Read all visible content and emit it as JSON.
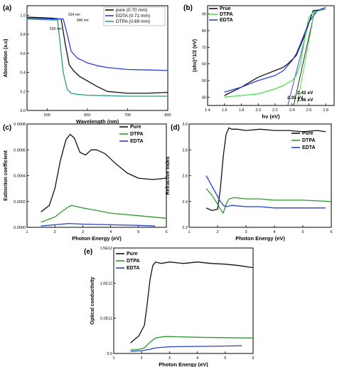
{
  "chart_data": [
    {
      "panel": "(a)",
      "type": "line",
      "xlabel": "Wavelength (nm)",
      "ylabel": "Absorption (a.u)",
      "xlim": [
        450,
        800
      ],
      "ylim": [
        0,
        1.1
      ],
      "xticks": [
        "500",
        "600",
        "700",
        "800"
      ],
      "yticks": [
        "0.0",
        "0.2",
        "0.4",
        "0.6",
        "0.8",
        "1.0"
      ],
      "annotations": [
        "524 nm",
        "540 nm",
        "526 nm"
      ],
      "series": [
        {
          "name": "pure (0.70 mm)",
          "color": "#111111",
          "x": [
            450,
            480,
            510,
            535,
            545,
            555,
            565,
            580,
            600,
            625,
            650,
            700,
            750,
            800
          ],
          "y": [
            0.98,
            0.975,
            0.97,
            0.96,
            0.7,
            0.48,
            0.42,
            0.36,
            0.31,
            0.25,
            0.2,
            0.18,
            0.18,
            0.19
          ]
        },
        {
          "name": "EDTA (0.71 mm)",
          "color": "#2a3fd6",
          "x": [
            450,
            480,
            510,
            540,
            550,
            560,
            575,
            600,
            625,
            650,
            700,
            750,
            800
          ],
          "y": [
            0.97,
            0.965,
            0.96,
            0.96,
            0.8,
            0.62,
            0.55,
            0.5,
            0.47,
            0.45,
            0.43,
            0.425,
            0.42
          ]
        },
        {
          "name": "DTPA (0.69 mm)",
          "color": "#2a9a8e",
          "x": [
            450,
            480,
            510,
            526,
            540,
            550,
            560,
            575,
            600,
            650,
            700,
            750,
            800
          ],
          "y": [
            0.96,
            0.955,
            0.95,
            0.95,
            0.4,
            0.22,
            0.18,
            0.17,
            0.16,
            0.155,
            0.15,
            0.15,
            0.15
          ]
        }
      ],
      "legend_position": "top-right"
    },
    {
      "panel": "(b)",
      "type": "line",
      "xlabel": "hν (eV)",
      "ylabel": "(αhν)^1/2 (eV)",
      "xlim": [
        1.4,
        2.9
      ],
      "ylim": [
        35,
        95
      ],
      "xticks": [
        "1.4",
        "1.6",
        "1.8",
        "2.0",
        "2.2",
        "2.4",
        "2.6",
        "2.8"
      ],
      "yticks": [
        "40",
        "50",
        "60",
        "70",
        "80",
        "90"
      ],
      "annotations": [
        "2.35 eV",
        "2.42 eV",
        "2.46 eV"
      ],
      "series": [
        {
          "name": "Prue",
          "color": "#111111",
          "x": [
            1.6,
            1.8,
            2.0,
            2.1,
            2.2,
            2.3,
            2.35,
            2.45,
            2.55,
            2.65,
            2.8
          ],
          "y": [
            41,
            46,
            52,
            54,
            56,
            58,
            60,
            65,
            77,
            92,
            93
          ]
        },
        {
          "name": "DTPA",
          "color": "#44e34a",
          "x": [
            1.6,
            1.8,
            2.0,
            2.2,
            2.3,
            2.4,
            2.45,
            2.5,
            2.55,
            2.6,
            2.65,
            2.8
          ],
          "y": [
            40,
            41,
            42,
            45,
            47,
            50,
            53,
            60,
            75,
            88,
            91,
            93
          ]
        },
        {
          "name": "EDTA",
          "color": "#2a3fd6",
          "x": [
            1.6,
            1.8,
            2.0,
            2.2,
            2.3,
            2.4,
            2.45,
            2.5,
            2.6,
            2.7,
            2.8
          ],
          "y": [
            43,
            46,
            50,
            53,
            56,
            62,
            66,
            72,
            85,
            92,
            94
          ]
        }
      ],
      "fit_lines": [
        {
          "color": "#2a3fd6",
          "x": [
            2.35,
            2.6
          ],
          "y": [
            35,
            85
          ]
        },
        {
          "color": "#111111",
          "x": [
            2.42,
            2.67
          ],
          "y": [
            35,
            92
          ]
        },
        {
          "color": "#44e34a",
          "x": [
            2.46,
            2.66
          ],
          "y": [
            35,
            90
          ]
        }
      ],
      "legend_position": "top-left"
    },
    {
      "panel": "(c)",
      "type": "line",
      "xlabel": "Photon Energy (eV)",
      "ylabel": "Extinction coefficient",
      "xlim": [
        1,
        6
      ],
      "ylim": [
        0,
        0.0008
      ],
      "xticks": [
        "1",
        "2",
        "3",
        "4",
        "5",
        "6"
      ],
      "yticks": [
        "0.0000",
        "0.0002",
        "0.0004",
        "0.0006",
        "0.0008"
      ],
      "series": [
        {
          "name": "Pure",
          "color": "#111111",
          "x": [
            1.5,
            1.8,
            2.0,
            2.2,
            2.4,
            2.55,
            2.7,
            2.9,
            3.1,
            3.3,
            3.5,
            3.8,
            4.2,
            4.6,
            5.0,
            5.5,
            6.0
          ],
          "y": [
            0.00012,
            0.00017,
            0.0003,
            0.00052,
            0.00068,
            0.00072,
            0.00069,
            0.00058,
            0.00056,
            0.0006,
            0.0006,
            0.00057,
            0.00049,
            0.00042,
            0.00038,
            0.00037,
            0.00038
          ]
        },
        {
          "name": "DTPA",
          "color": "#2e9a2e",
          "x": [
            1.5,
            2.0,
            2.3,
            2.5,
            2.6,
            3.0,
            3.5,
            4.0,
            5.0,
            6.0
          ],
          "y": [
            4e-05,
            8e-05,
            0.00013,
            0.00016,
            0.00017,
            0.00015,
            0.00013,
            0.00011,
            9e-05,
            7e-05
          ]
        },
        {
          "name": "EDTA",
          "color": "#2a3fd6",
          "x": [
            1.5,
            2.0,
            2.5,
            3.0,
            4.0,
            5.0,
            5.6
          ],
          "y": [
            1e-05,
            2e-05,
            3e-05,
            2.5e-05,
            2e-05,
            1.5e-05,
            1e-05
          ]
        }
      ],
      "legend_position": "top-right"
    },
    {
      "panel": "(d)",
      "type": "line",
      "xlabel": "Photon Energy (eV)",
      "ylabel": "Refractive Index",
      "xlim": [
        1,
        6
      ],
      "ylim": [
        2.2,
        3.0
      ],
      "xticks": [
        "1",
        "2",
        "3",
        "4",
        "5",
        "6"
      ],
      "yticks": [
        "2.2",
        "2.4",
        "2.6",
        "2.8",
        "3.0"
      ],
      "series": [
        {
          "name": "Pure",
          "color": "#111111",
          "x": [
            1.6,
            1.8,
            2.0,
            2.1,
            2.2,
            2.3,
            2.4,
            2.5,
            2.7,
            3.0,
            3.5,
            4.0,
            4.5,
            5.0,
            5.5,
            5.8
          ],
          "y": [
            2.35,
            2.33,
            2.34,
            2.5,
            2.75,
            2.92,
            2.97,
            2.96,
            2.96,
            2.95,
            2.96,
            2.95,
            2.95,
            2.94,
            2.95,
            2.94
          ]
        },
        {
          "name": "DTPA",
          "color": "#2e9a2e",
          "x": [
            1.6,
            1.8,
            2.0,
            2.1,
            2.2,
            2.3,
            2.4,
            2.6,
            3.0,
            3.5,
            4.0,
            5.0,
            6.0
          ],
          "y": [
            2.5,
            2.45,
            2.38,
            2.34,
            2.31,
            2.38,
            2.42,
            2.43,
            2.42,
            2.42,
            2.41,
            2.41,
            2.4
          ]
        },
        {
          "name": "EDTA",
          "color": "#2a3fd6",
          "x": [
            1.6,
            1.8,
            2.0,
            2.1,
            2.2,
            2.3,
            2.5,
            3.0,
            3.5,
            4.0,
            5.0,
            5.8
          ],
          "y": [
            2.6,
            2.52,
            2.44,
            2.4,
            2.37,
            2.36,
            2.37,
            2.36,
            2.36,
            2.35,
            2.35,
            2.35
          ]
        }
      ],
      "legend_position": "top-right"
    },
    {
      "panel": "(e)",
      "type": "line",
      "xlabel": "Photon Energy (eV)",
      "ylabel": "Optical conductivity",
      "xlim": [
        1,
        6
      ],
      "ylim": [
        0,
        1500000000000.0
      ],
      "xticks": [
        "1",
        "2",
        "3",
        "4",
        "5",
        "6"
      ],
      "yticks": [
        "0.0",
        "5.0E11",
        "1.0E12",
        "1.5E12"
      ],
      "series": [
        {
          "name": "Pure",
          "color": "#111111",
          "x": [
            1.6,
            1.9,
            2.1,
            2.2,
            2.3,
            2.4,
            2.5,
            2.7,
            3.0,
            3.5,
            4.0,
            4.5,
            5.0,
            5.5,
            6.0
          ],
          "y": [
            150000000000.0,
            250000000000.0,
            400000000000.0,
            700000000000.0,
            1050000000000.0,
            1250000000000.0,
            1300000000000.0,
            1280000000000.0,
            1300000000000.0,
            1280000000000.0,
            1300000000000.0,
            1280000000000.0,
            1270000000000.0,
            1250000000000.0,
            1220000000000.0
          ]
        },
        {
          "name": "DTPA",
          "color": "#2e9a2e",
          "x": [
            1.6,
            1.9,
            2.1,
            2.3,
            2.5,
            2.8,
            3.0,
            3.5,
            4.0,
            5.0,
            6.0
          ],
          "y": [
            50000000000.0,
            60000000000.0,
            80000000000.0,
            160000000000.0,
            220000000000.0,
            240000000000.0,
            240000000000.0,
            235000000000.0,
            230000000000.0,
            225000000000.0,
            220000000000.0
          ]
        },
        {
          "name": "EDTA",
          "color": "#2a3fd6",
          "x": [
            1.6,
            2.0,
            2.3,
            2.5,
            3.0,
            4.0,
            5.0,
            5.6
          ],
          "y": [
            30000000000.0,
            40000000000.0,
            60000000000.0,
            80000000000.0,
            95000000000.0,
            100000000000.0,
            105000000000.0,
            110000000000.0
          ]
        }
      ],
      "legend_position": "top-left"
    }
  ]
}
